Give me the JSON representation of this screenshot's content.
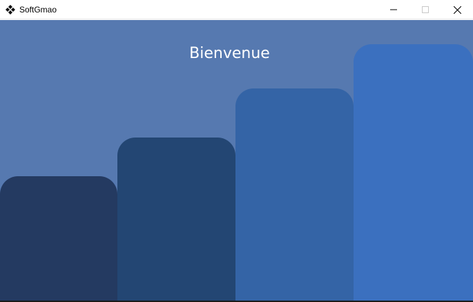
{
  "window": {
    "title": "SoftGmao",
    "app_icon": "diamond-arrows-icon",
    "controls": {
      "minimize_icon": "minimize-icon",
      "maximize_icon": "maximize-icon",
      "close_icon": "close-icon"
    }
  },
  "main": {
    "welcome_text": "Bienvenue",
    "colors": {
      "background": "#5679b0",
      "text": "#ffffff"
    },
    "steps": [
      {
        "color": "#243a61"
      },
      {
        "color": "#234673"
      },
      {
        "color": "#3464a6"
      },
      {
        "color": "#3b70bf"
      }
    ]
  }
}
